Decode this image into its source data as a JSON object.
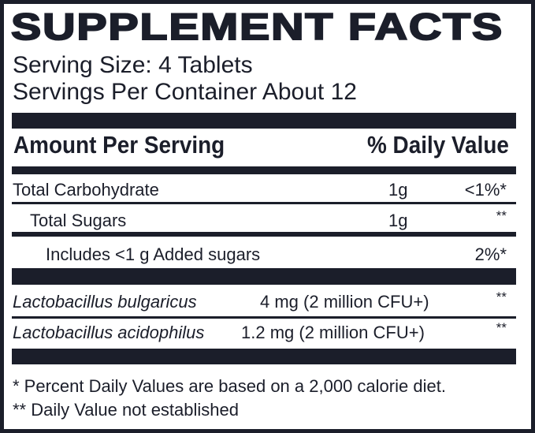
{
  "title": "SUPPLEMENT FACTS",
  "serving_size": "Serving Size:  4 Tablets",
  "servings_per_container": "Servings Per Container About 12",
  "header": {
    "amount": "Amount Per Serving",
    "daily_value": "% Daily Value"
  },
  "rows": [
    {
      "name": "Total Carbohydrate",
      "amount": "1g",
      "dv": "<1%*"
    },
    {
      "name": "Total Sugars",
      "amount": "1g",
      "dv": "**"
    },
    {
      "name": "Includes <1 g Added sugars",
      "amount": "",
      "dv": "2%*"
    },
    {
      "name": "Lactobacillus bulgaricus",
      "amount": "4 mg (2 million CFU+)",
      "dv": "**"
    },
    {
      "name": "Lactobacillus acidophilus",
      "amount": "1.2 mg (2 million CFU+)",
      "dv": "**"
    }
  ],
  "footnotes": [
    "* Percent Daily Values are based on a 2,000 calorie diet.",
    "** Daily Value not established"
  ],
  "colors": {
    "ink": "#1b1e2a",
    "background": "#ffffff"
  }
}
